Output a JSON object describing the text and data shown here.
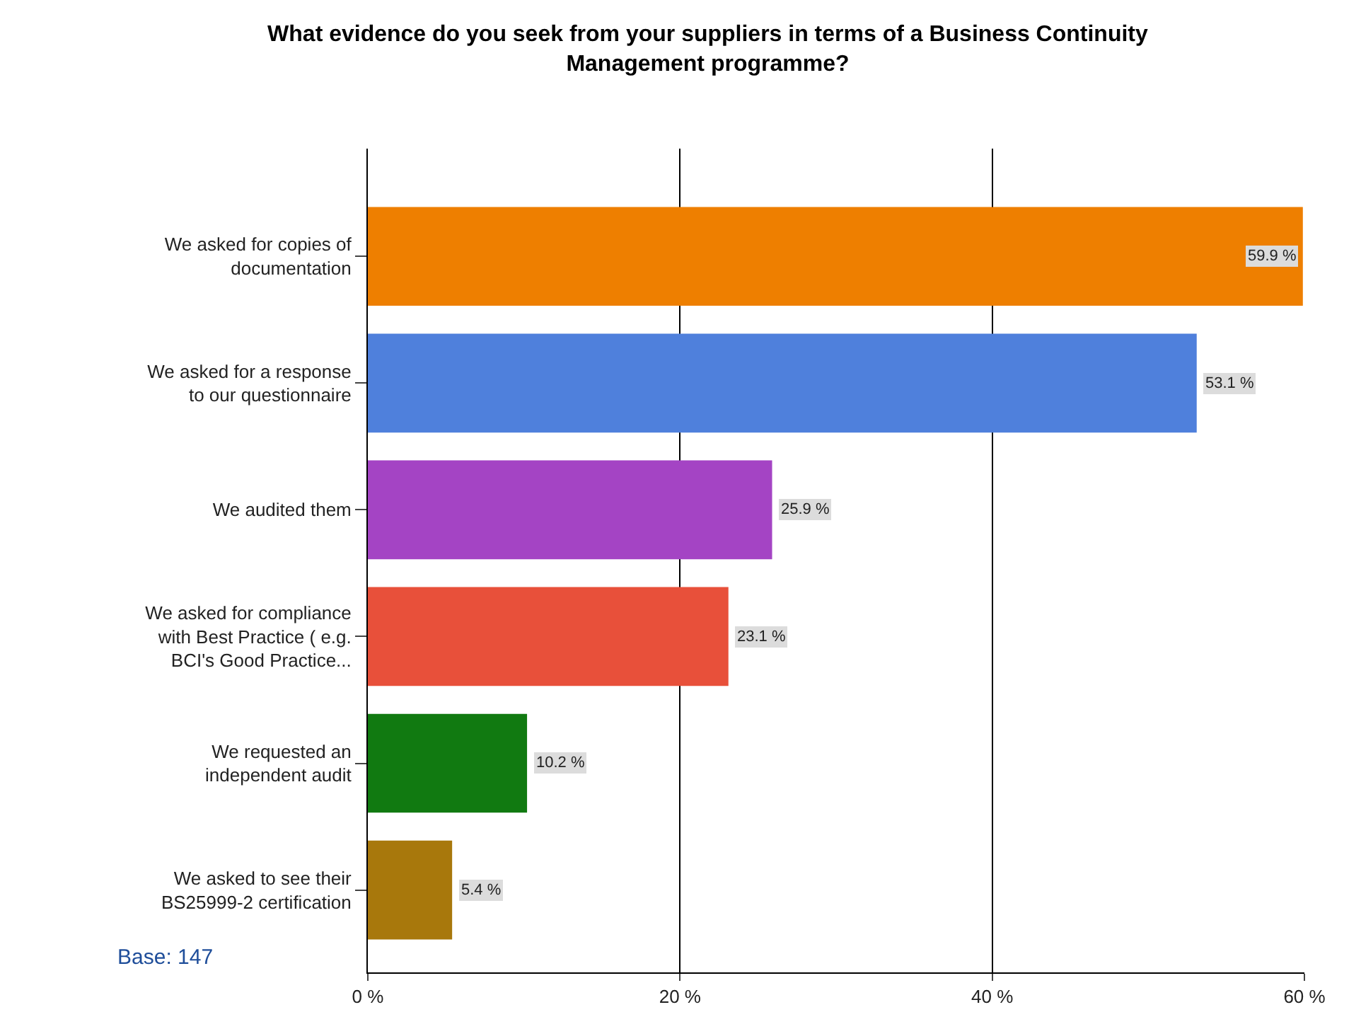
{
  "chart_data": {
    "type": "bar",
    "orientation": "horizontal",
    "title": "What evidence do you seek from your suppliers in terms of a Business Continuity Management programme?",
    "categories": [
      "We asked for copies of documentation",
      "We asked for a response to our questionnaire",
      "We audited them",
      "We asked for compliance with Best Practice ( e.g. BCI's Good Practice...",
      "We requested an independent audit",
      "We asked to see their BS25999-2 certification"
    ],
    "values": [
      59.9,
      53.1,
      25.9,
      23.1,
      10.2,
      5.4
    ],
    "colors": [
      "#ee7f00",
      "#4f80dc",
      "#a444c4",
      "#e8503a",
      "#117a11",
      "#a8780c"
    ],
    "value_labels": [
      "59.9 %",
      "53.1 %",
      "25.9 %",
      "23.1 %",
      "10.2 %",
      "5.4 %"
    ],
    "xlim": [
      0,
      60
    ],
    "xticks": [
      {
        "value": 0,
        "label": "0 %"
      },
      {
        "value": 20,
        "label": "20 %"
      },
      {
        "value": 40,
        "label": "40 %"
      },
      {
        "value": 60,
        "label": "60 %"
      }
    ],
    "grid": "x",
    "annotations": [
      "Base: 147"
    ]
  }
}
